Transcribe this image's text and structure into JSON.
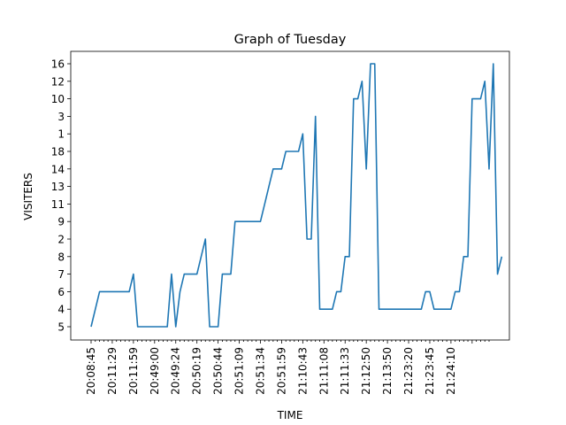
{
  "chart_data": {
    "type": "line",
    "title": "Graph of Tuesday",
    "xlabel": "TIME",
    "ylabel": "VISITERS",
    "y_categories_bottom_to_top": [
      "5",
      "4",
      "6",
      "7",
      "8",
      "2",
      "9",
      "11",
      "13",
      "14",
      "18",
      "1",
      "3",
      "10",
      "12",
      "16"
    ],
    "x_tick_labels": [
      "20:08:45",
      "20:11:29",
      "20:11:59",
      "20:49:00",
      "20:49:24",
      "20:50:19",
      "20:50:44",
      "20:51:09",
      "20:51:34",
      "20:51:59",
      "21:10:43",
      "21:11:08",
      "21:11:33",
      "21:12:50",
      "21:13:50",
      "21:23:20",
      "21:23:45",
      "21:24:10"
    ],
    "x_major_every": 5,
    "x_minor_count": 95,
    "grid": false,
    "series": [
      {
        "color": "#1f77b4",
        "values": [
          "5",
          "6",
          "6",
          "6",
          "6",
          "6",
          "6",
          "6",
          "6",
          "7",
          "5",
          "5",
          "5",
          "5",
          "5",
          "5",
          "5",
          "5",
          "7",
          "7",
          "5",
          "6",
          "7",
          "7",
          "7",
          "7",
          "8",
          "2",
          "5",
          "5",
          "5",
          "7",
          "7",
          "7",
          "9",
          "9",
          "9",
          "9",
          "9",
          "9",
          "9",
          "11",
          "13",
          "14",
          "14",
          "14",
          "18",
          "18",
          "18",
          "18",
          "1",
          "2",
          "2",
          "3",
          "4",
          "4",
          "4",
          "4",
          "6",
          "6",
          "8",
          "8",
          "10",
          "10",
          "12",
          "14",
          "16",
          "16",
          "4",
          "4",
          "4",
          "4",
          "4",
          "4",
          "4",
          "4",
          "4",
          "4",
          "4",
          "6",
          "6",
          "4",
          "4",
          "4",
          "4",
          "4",
          "6",
          "6",
          "8",
          "8",
          "10",
          "10",
          "10",
          "12",
          "14",
          "16",
          "7",
          "8"
        ],
        "x_index": [
          0,
          2,
          3,
          4,
          5,
          6,
          7,
          8,
          9,
          10,
          11,
          12,
          13,
          14,
          15,
          16,
          17,
          18,
          19,
          19,
          20,
          21,
          22,
          23,
          24,
          25,
          26,
          27,
          28,
          29,
          30,
          31,
          32,
          33,
          34,
          35,
          36,
          37,
          38,
          39,
          40,
          41,
          42,
          43,
          44,
          45,
          46,
          47,
          48,
          49,
          50,
          51,
          52,
          53,
          54,
          55,
          56,
          57,
          58,
          59,
          60,
          61,
          62,
          63,
          64,
          65,
          66,
          67,
          68,
          69,
          70,
          71,
          72,
          73,
          74,
          75,
          76,
          77,
          78,
          79,
          80,
          81,
          82,
          83,
          84,
          85,
          86,
          87,
          88,
          89,
          90,
          91,
          92,
          93,
          94,
          95,
          96,
          97
        ]
      }
    ]
  }
}
